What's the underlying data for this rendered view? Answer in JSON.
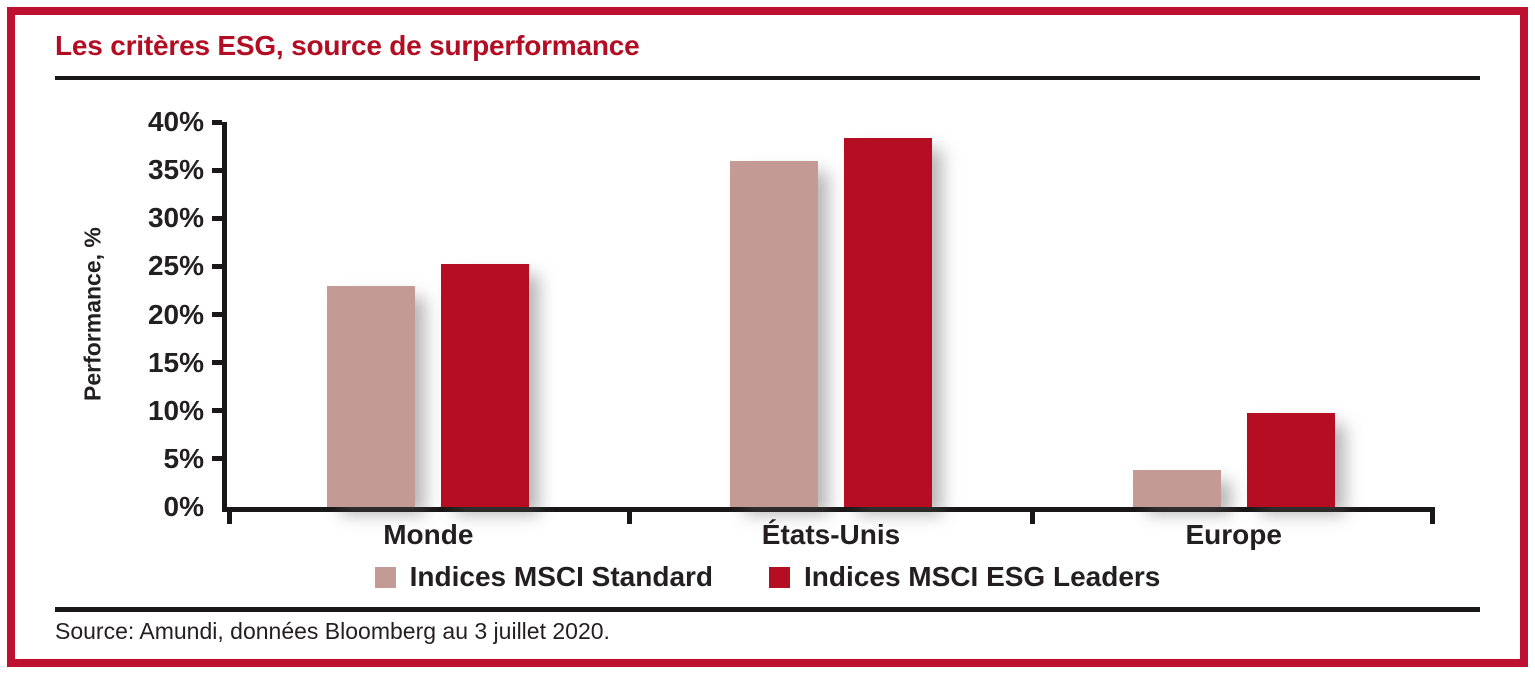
{
  "header": {
    "title": "Les critères ESG, source de surperformance"
  },
  "footer": {
    "source": "Source: Amundi, données Bloomberg au 3 juillet 2020."
  },
  "colors": {
    "frame_border": "#BE1030",
    "title_red": "#B30D24",
    "axis_black": "#1A1718",
    "text_dark": "#231F20"
  },
  "chart_data": {
    "type": "bar",
    "title": "Les critères ESG, source de surperformance",
    "categories": [
      "Monde",
      "États-Unis",
      "Europe"
    ],
    "series": [
      {
        "name": "Indices MSCI Standard",
        "color": "#C39A94",
        "values": [
          23.0,
          35.9,
          3.8
        ]
      },
      {
        "name": "Indices MSCI ESG Leaders",
        "color": "#B50E23",
        "values": [
          25.3,
          38.3,
          9.8
        ]
      }
    ],
    "xlabel": "",
    "ylabel": "Performance, %",
    "ylim": [
      0,
      40
    ],
    "ytick_step": 5,
    "yticks": [
      "0%",
      "5%",
      "10%",
      "15%",
      "20%",
      "25%",
      "30%",
      "35%",
      "40%"
    ],
    "grid": false,
    "legend_position": "bottom"
  }
}
